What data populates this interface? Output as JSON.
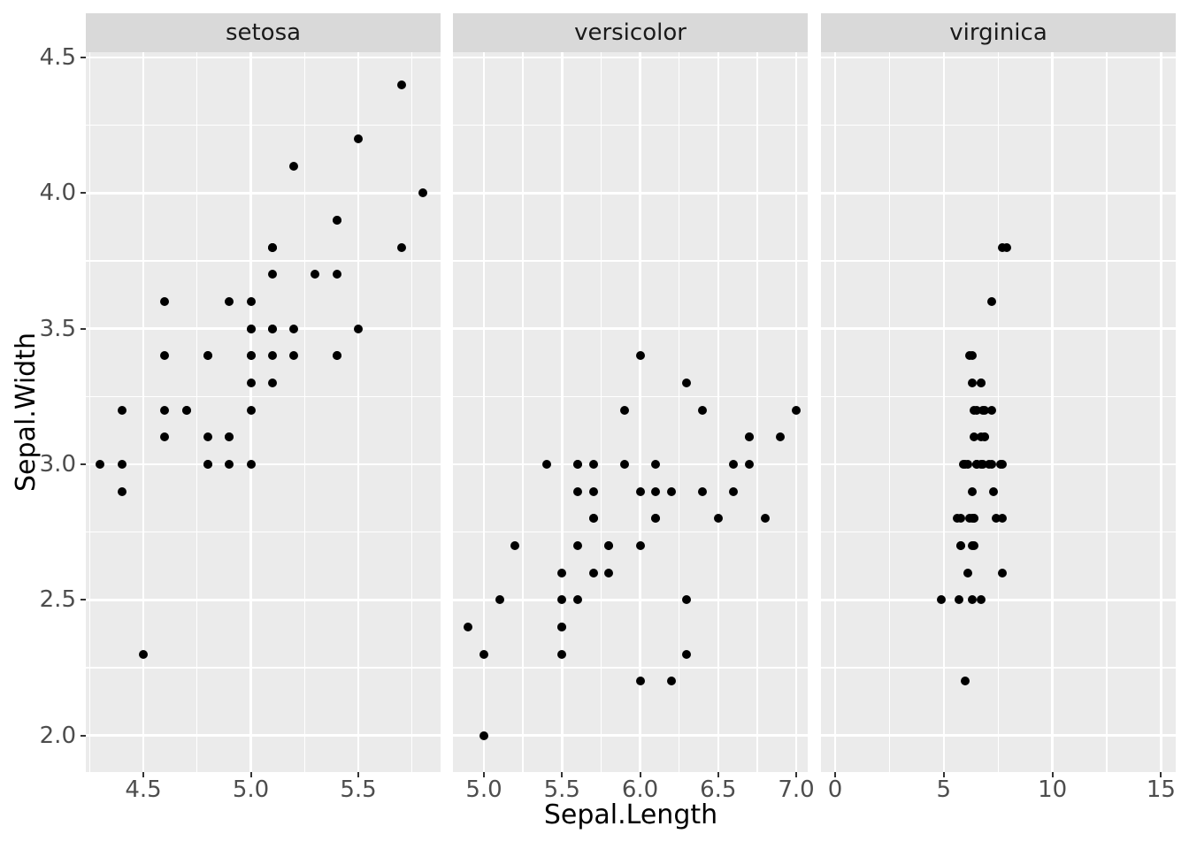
{
  "chart_data": {
    "type": "scatter",
    "xlabel": "Sepal.Length",
    "ylabel": "Sepal.Width",
    "legend": "none",
    "grid": "on",
    "point_color": "#000000",
    "panel_bg": "#EBEBEB",
    "strip_bg": "#D9D9D9",
    "grid_color": "#FFFFFF",
    "tick_label_color": "#4D4D4D",
    "axis_title_color": "#000000",
    "y_axis": {
      "lim": [
        1.865,
        4.52
      ],
      "major": [
        2.0,
        2.5,
        3.0,
        3.5,
        4.0,
        4.5
      ],
      "labels": [
        "2.0",
        "2.5",
        "3.0",
        "3.5",
        "4.0",
        "4.5"
      ],
      "minor": [
        2.25,
        2.75,
        3.25,
        3.75,
        4.25
      ]
    },
    "facets": [
      {
        "label": "setosa",
        "x_lim": [
          4.2325,
          5.8827
        ],
        "x_major": [
          4.5,
          5.0,
          5.5
        ],
        "x_labels": [
          "4.5",
          "5.0",
          "5.5"
        ],
        "x_minor": [
          4.25,
          4.75,
          5.25,
          5.75
        ],
        "points": [
          [
            5.1,
            3.5
          ],
          [
            4.9,
            3.0
          ],
          [
            4.7,
            3.2
          ],
          [
            4.6,
            3.1
          ],
          [
            5.0,
            3.6
          ],
          [
            5.4,
            3.9
          ],
          [
            4.6,
            3.4
          ],
          [
            5.0,
            3.4
          ],
          [
            4.4,
            2.9
          ],
          [
            4.9,
            3.1
          ],
          [
            5.4,
            3.7
          ],
          [
            4.8,
            3.4
          ],
          [
            4.8,
            3.0
          ],
          [
            4.3,
            3.0
          ],
          [
            5.8,
            4.0
          ],
          [
            5.7,
            4.4
          ],
          [
            5.4,
            3.9
          ],
          [
            5.1,
            3.5
          ],
          [
            5.7,
            3.8
          ],
          [
            5.1,
            3.8
          ],
          [
            5.4,
            3.4
          ],
          [
            5.1,
            3.7
          ],
          [
            4.6,
            3.6
          ],
          [
            5.1,
            3.3
          ],
          [
            4.8,
            3.4
          ],
          [
            5.0,
            3.0
          ],
          [
            5.0,
            3.4
          ],
          [
            5.2,
            3.5
          ],
          [
            5.2,
            3.4
          ],
          [
            4.7,
            3.2
          ],
          [
            4.8,
            3.1
          ],
          [
            5.4,
            3.4
          ],
          [
            5.2,
            4.1
          ],
          [
            5.5,
            4.2
          ],
          [
            4.9,
            3.1
          ],
          [
            5.0,
            3.2
          ],
          [
            5.5,
            3.5
          ],
          [
            4.9,
            3.6
          ],
          [
            4.4,
            3.0
          ],
          [
            5.1,
            3.4
          ],
          [
            5.0,
            3.5
          ],
          [
            4.5,
            2.3
          ],
          [
            4.4,
            3.2
          ],
          [
            5.0,
            3.5
          ],
          [
            5.1,
            3.8
          ],
          [
            4.8,
            3.0
          ],
          [
            5.1,
            3.8
          ],
          [
            4.6,
            3.2
          ],
          [
            5.3,
            3.7
          ],
          [
            5.0,
            3.3
          ]
        ]
      },
      {
        "label": "versicolor",
        "x_lim": [
          4.8017,
          7.0734
        ],
        "x_major": [
          5.0,
          5.5,
          6.0,
          6.5,
          7.0
        ],
        "x_labels": [
          "5.0",
          "5.5",
          "6.0",
          "6.5",
          "7.0"
        ],
        "x_minor": [
          5.25,
          5.75,
          6.25,
          6.75
        ],
        "points": [
          [
            7.0,
            3.2
          ],
          [
            6.4,
            3.2
          ],
          [
            6.9,
            3.1
          ],
          [
            5.5,
            2.3
          ],
          [
            6.5,
            2.8
          ],
          [
            5.7,
            2.8
          ],
          [
            6.3,
            3.3
          ],
          [
            4.9,
            2.4
          ],
          [
            6.6,
            2.9
          ],
          [
            5.2,
            2.7
          ],
          [
            5.0,
            2.0
          ],
          [
            5.9,
            3.0
          ],
          [
            6.0,
            2.2
          ],
          [
            6.1,
            2.9
          ],
          [
            5.6,
            2.9
          ],
          [
            6.7,
            3.1
          ],
          [
            5.6,
            3.0
          ],
          [
            5.8,
            2.7
          ],
          [
            6.2,
            2.2
          ],
          [
            5.6,
            2.5
          ],
          [
            5.9,
            3.2
          ],
          [
            6.1,
            2.8
          ],
          [
            6.3,
            2.5
          ],
          [
            6.1,
            2.8
          ],
          [
            6.4,
            2.9
          ],
          [
            6.6,
            3.0
          ],
          [
            6.8,
            2.8
          ],
          [
            6.7,
            3.0
          ],
          [
            6.0,
            2.9
          ],
          [
            5.7,
            2.6
          ],
          [
            5.5,
            2.4
          ],
          [
            5.5,
            2.4
          ],
          [
            5.8,
            2.7
          ],
          [
            6.0,
            2.7
          ],
          [
            5.4,
            3.0
          ],
          [
            6.0,
            3.4
          ],
          [
            6.7,
            3.1
          ],
          [
            6.3,
            2.3
          ],
          [
            5.6,
            3.0
          ],
          [
            5.5,
            2.5
          ],
          [
            5.5,
            2.6
          ],
          [
            6.1,
            3.0
          ],
          [
            5.8,
            2.6
          ],
          [
            5.0,
            2.3
          ],
          [
            5.6,
            2.7
          ],
          [
            5.7,
            3.0
          ],
          [
            5.7,
            2.9
          ],
          [
            6.2,
            2.9
          ],
          [
            5.1,
            2.5
          ],
          [
            5.7,
            2.8
          ]
        ]
      },
      {
        "label": "virginica",
        "x_lim": [
          -0.6514,
          15.675
        ],
        "x_major": [
          0,
          5,
          10,
          15
        ],
        "x_labels": [
          "0",
          "5",
          "10",
          "15"
        ],
        "x_minor": [
          2.5,
          7.5,
          12.5
        ],
        "points": [
          [
            6.3,
            3.3
          ],
          [
            5.8,
            2.7
          ],
          [
            7.1,
            3.0
          ],
          [
            6.3,
            2.9
          ],
          [
            6.5,
            3.0
          ],
          [
            7.6,
            3.0
          ],
          [
            4.9,
            2.5
          ],
          [
            7.3,
            2.9
          ],
          [
            6.7,
            2.5
          ],
          [
            7.2,
            3.6
          ],
          [
            6.5,
            3.2
          ],
          [
            6.4,
            2.7
          ],
          [
            6.8,
            3.0
          ],
          [
            5.7,
            2.5
          ],
          [
            5.8,
            2.8
          ],
          [
            6.4,
            3.2
          ],
          [
            6.5,
            3.0
          ],
          [
            7.7,
            3.8
          ],
          [
            7.7,
            2.6
          ],
          [
            6.0,
            2.2
          ],
          [
            6.9,
            3.2
          ],
          [
            5.6,
            2.8
          ],
          [
            7.7,
            2.8
          ],
          [
            6.3,
            2.7
          ],
          [
            6.7,
            3.3
          ],
          [
            7.2,
            3.2
          ],
          [
            6.2,
            2.8
          ],
          [
            6.1,
            3.0
          ],
          [
            6.4,
            2.8
          ],
          [
            7.2,
            3.0
          ],
          [
            7.4,
            2.8
          ],
          [
            7.9,
            3.8
          ],
          [
            6.4,
            2.8
          ],
          [
            6.3,
            2.8
          ],
          [
            6.1,
            2.6
          ],
          [
            7.7,
            3.0
          ],
          [
            6.3,
            3.4
          ],
          [
            6.4,
            3.1
          ],
          [
            6.0,
            3.0
          ],
          [
            6.9,
            3.1
          ],
          [
            6.7,
            3.1
          ],
          [
            6.9,
            3.1
          ],
          [
            5.8,
            2.7
          ],
          [
            6.8,
            3.2
          ],
          [
            6.7,
            3.3
          ],
          [
            6.7,
            3.0
          ],
          [
            6.3,
            2.5
          ],
          [
            6.5,
            3.0
          ],
          [
            6.2,
            3.4
          ],
          [
            5.9,
            3.0
          ]
        ]
      }
    ]
  }
}
